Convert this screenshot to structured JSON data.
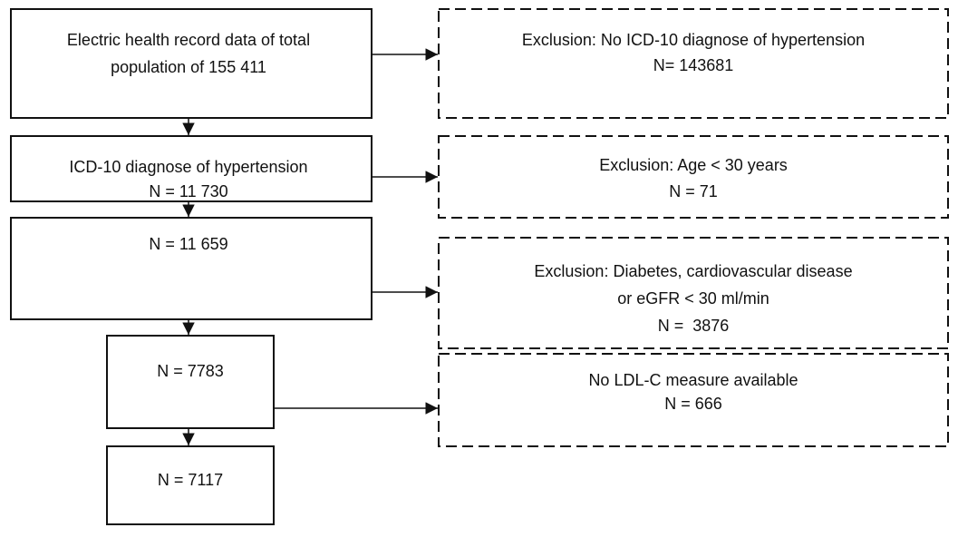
{
  "nodes": [
    {
      "lines": [
        "Electric health record data of total",
        "population of 155 411"
      ]
    },
    {
      "lines": [
        "ICD-10 diagnose of hypertension",
        "N = 11 730"
      ]
    },
    {
      "lines": [
        "N = 11 659"
      ]
    },
    {
      "lines": [
        "N = 7783"
      ]
    },
    {
      "lines": [
        "N = 7117"
      ]
    }
  ],
  "exclusions": [
    {
      "lines": [
        "Exclusion: No ICD-10 diagnose of hypertension",
        "N= 143681"
      ]
    },
    {
      "lines": [
        "Exclusion: Age < 30 years",
        "N = 71"
      ]
    },
    {
      "lines": [
        "Exclusion: Diabetes, cardiovascular disease",
        "or eGFR < 30 ml/min",
        "N =  3876"
      ]
    },
    {
      "lines": [
        "No LDL-C measure available",
        "N = 666"
      ]
    }
  ]
}
